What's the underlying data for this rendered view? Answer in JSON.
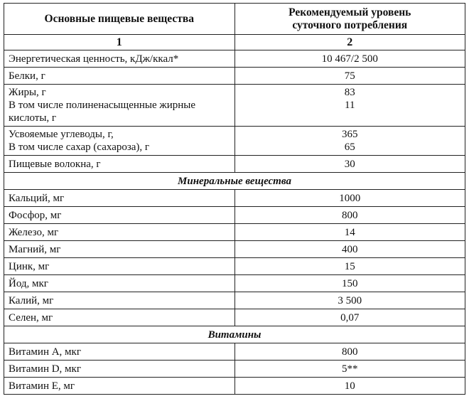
{
  "header": {
    "col1": "Основные пищевые вещества",
    "col2_line1": "Рекомендуемый уровень",
    "col2_line2": "суточного потребления",
    "num1": "1",
    "num2": "2"
  },
  "rows_main": [
    {
      "name": [
        "Энергетическая ценность, кДж/ккал*"
      ],
      "value": [
        "10 467/2 500"
      ]
    },
    {
      "name": [
        "Белки, г"
      ],
      "value": [
        "75"
      ]
    },
    {
      "name": [
        "Жиры, г",
        "В том числе полиненасыщенные жирные",
        "кислоты, г"
      ],
      "value": [
        "83",
        "11",
        ""
      ]
    },
    {
      "name": [
        "Усвояемые углеводы, г,",
        "В том числе сахар (сахароза), г"
      ],
      "value": [
        "365",
        "65"
      ]
    },
    {
      "name": [
        "Пищевые волокна, г"
      ],
      "value": [
        "30"
      ]
    }
  ],
  "minerals": {
    "title": "Минеральные вещества",
    "rows": [
      {
        "name": "Кальций, мг",
        "value": "1000"
      },
      {
        "name": "Фосфор, мг",
        "value": "800"
      },
      {
        "name": "Железо, мг",
        "value": "14"
      },
      {
        "name": "Магний, мг",
        "value": "400"
      },
      {
        "name": "Цинк, мг",
        "value": "15"
      },
      {
        "name": "Йод, мкг",
        "value": "150"
      },
      {
        "name": "Калий, мг",
        "value": "3 500"
      },
      {
        "name": "Селен, мг",
        "value": "0,07"
      }
    ]
  },
  "vitamins": {
    "title": "Витамины",
    "rows": [
      {
        "name": "Витамин А, мкг",
        "value": "800"
      },
      {
        "name": "Витамин D, мкг",
        "value": "5**"
      },
      {
        "name": "Витамин Е, мг",
        "value": "10"
      }
    ]
  }
}
